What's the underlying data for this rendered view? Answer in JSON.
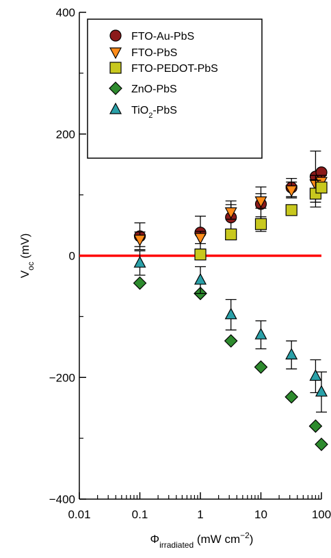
{
  "chart_data": {
    "type": "scatter",
    "xscale": "log",
    "xlim": [
      0.01,
      100
    ],
    "ylim": [
      -400,
      400
    ],
    "grid": false,
    "legend_position": "top-left",
    "xticks": [
      {
        "value": 0.01,
        "label": "0.01"
      },
      {
        "value": 0.1,
        "label": "0.1"
      },
      {
        "value": 1,
        "label": "1"
      },
      {
        "value": 10,
        "label": "10"
      },
      {
        "value": 100,
        "label": "100"
      }
    ],
    "yticks": [
      {
        "value": 400,
        "label": "400"
      },
      {
        "value": 200,
        "label": "200"
      },
      {
        "value": 0,
        "label": "0"
      },
      {
        "value": -200,
        "label": "−200"
      },
      {
        "value": -400,
        "label": "−400"
      }
    ],
    "xlabel": {
      "main": "Φ",
      "sub": "irradiated",
      "rest": " (mW cm",
      "sup": "−2",
      "end": ")"
    },
    "ylabel": {
      "main": "V",
      "sub": "oc",
      "rest": " (mV)"
    },
    "reference_line": {
      "y": 0,
      "color": "#ff0000"
    },
    "series": [
      {
        "name": "FTO-Au-PbS",
        "marker": "circle",
        "color": "#8b1a1a",
        "points": [
          {
            "x": 0.1,
            "y": 32,
            "err": 22
          },
          {
            "x": 1,
            "y": 38,
            "err": 27
          },
          {
            "x": 3.2,
            "y": 63,
            "err": 27
          },
          {
            "x": 10,
            "y": 85,
            "err": 28
          },
          {
            "x": 32,
            "y": 112,
            "err": 15
          },
          {
            "x": 80,
            "y": 130,
            "err": 42
          },
          {
            "x": 100,
            "y": 137,
            "err": 0
          }
        ]
      },
      {
        "name": "FTO-PbS",
        "marker": "triangle-down",
        "color": "#ff8c1a",
        "points": [
          {
            "x": 0.1,
            "y": 27,
            "err": 12
          },
          {
            "x": 1,
            "y": 30,
            "err": 10
          },
          {
            "x": 3.2,
            "y": 72,
            "err": 12
          },
          {
            "x": 10,
            "y": 90,
            "err": 12
          },
          {
            "x": 32,
            "y": 108,
            "err": 13
          },
          {
            "x": 80,
            "y": 118,
            "err": 14
          },
          {
            "x": 100,
            "y": 122,
            "err": 10
          }
        ]
      },
      {
        "name": "FTO-PEDOT-PbS",
        "marker": "square",
        "color": "#c8c81e",
        "points": [
          {
            "x": 1,
            "y": 2,
            "err": 0
          },
          {
            "x": 3.2,
            "y": 35,
            "err": 0
          },
          {
            "x": 10,
            "y": 52,
            "err": 12
          },
          {
            "x": 32,
            "y": 75,
            "err": 0
          },
          {
            "x": 80,
            "y": 102,
            "err": 22
          },
          {
            "x": 100,
            "y": 112,
            "err": 0
          }
        ]
      },
      {
        "name": "ZnO-PbS",
        "marker": "diamond",
        "color": "#2e8b2e",
        "points": [
          {
            "x": 0.1,
            "y": -45,
            "err": 0
          },
          {
            "x": 1,
            "y": -62,
            "err": 0
          },
          {
            "x": 3.2,
            "y": -140,
            "err": 0
          },
          {
            "x": 10,
            "y": -183,
            "err": 0
          },
          {
            "x": 32,
            "y": -232,
            "err": 0
          },
          {
            "x": 80,
            "y": -280,
            "err": 0
          },
          {
            "x": 100,
            "y": -310,
            "err": 0
          }
        ]
      },
      {
        "name": "TiO2-PbS",
        "name_main": "TiO",
        "name_sub": "2",
        "name_rest": "-PbS",
        "marker": "triangle-up",
        "color": "#2aa0a8",
        "points": [
          {
            "x": 0.1,
            "y": -12,
            "err": 20
          },
          {
            "x": 1,
            "y": -40,
            "err": 22
          },
          {
            "x": 3.2,
            "y": -97,
            "err": 25
          },
          {
            "x": 10,
            "y": -130,
            "err": 23
          },
          {
            "x": 32,
            "y": -163,
            "err": 23
          },
          {
            "x": 80,
            "y": -198,
            "err": 27
          },
          {
            "x": 100,
            "y": -224,
            "err": 33
          }
        ]
      }
    ]
  }
}
